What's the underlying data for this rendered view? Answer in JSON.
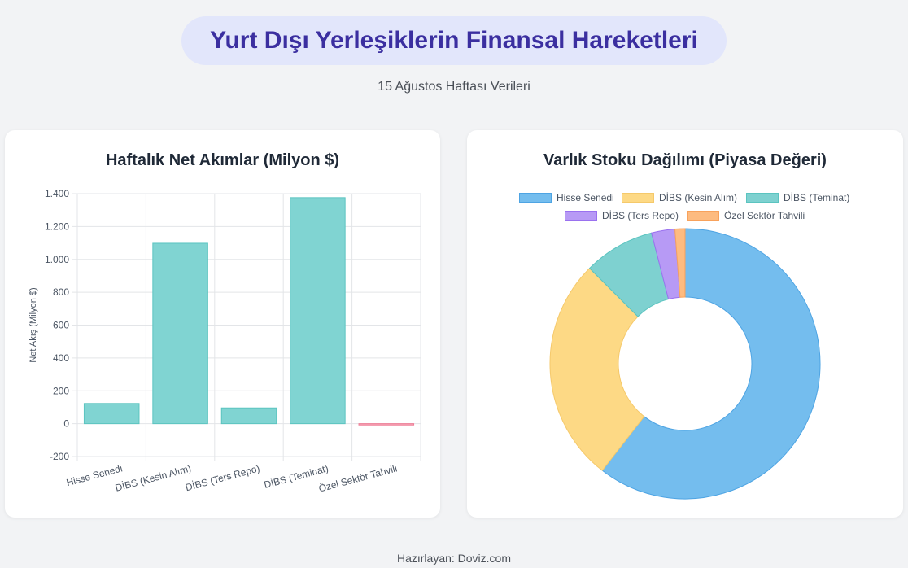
{
  "header": {
    "title": "Yurt Dışı Yerleşiklerin Finansal Hareketleri",
    "subtitle": "15 Ağustos Haftası Verileri"
  },
  "footer": {
    "text": "Hazırlayan: Doviz.com"
  },
  "chart_data": [
    {
      "type": "bar",
      "title": "Haftalık Net Akımlar (Milyon $)",
      "ylabel": "Net Akış (Milyon $)",
      "xlabel": "",
      "categories": [
        "Hisse Senedi",
        "DİBS (Kesin Alım)",
        "DİBS (Ters Repo)",
        "DİBS (Teminat)",
        "Özel Sektör Tahvili"
      ],
      "values": [
        123,
        1098,
        96,
        1376,
        -8
      ],
      "ylim": [
        -200,
        1400
      ],
      "yticks": [
        -200,
        0,
        200,
        400,
        600,
        800,
        1000,
        1200,
        1400
      ],
      "ytick_labels": [
        "-200",
        "0",
        "200",
        "400",
        "600",
        "800",
        "1.000",
        "1.200",
        "1.400"
      ],
      "grid": true,
      "colors": {
        "positive": "#80d4d2",
        "positive_border": "#5bc4c0",
        "negative": "#f7a8b8",
        "negative_border": "#ef7f97"
      }
    },
    {
      "type": "pie",
      "title": "Varlık Stoku Dağılımı (Piyasa Değeri)",
      "labels": [
        "Hisse Senedi",
        "DİBS (Kesin Alım)",
        "DİBS (Teminat)",
        "DİBS (Ters Repo)",
        "Özel Sektör Tahvili"
      ],
      "values": [
        60.5,
        27.0,
        8.5,
        2.8,
        1.2
      ],
      "donut": true,
      "legend": "top",
      "colors": [
        "#74bdee",
        "#fdd985",
        "#7ed1d0",
        "#b79af5",
        "#fdbb80"
      ],
      "border_colors": [
        "#4ea4e3",
        "#f5c96b",
        "#5bc4c0",
        "#9a71ef",
        "#f8a25c"
      ]
    }
  ]
}
